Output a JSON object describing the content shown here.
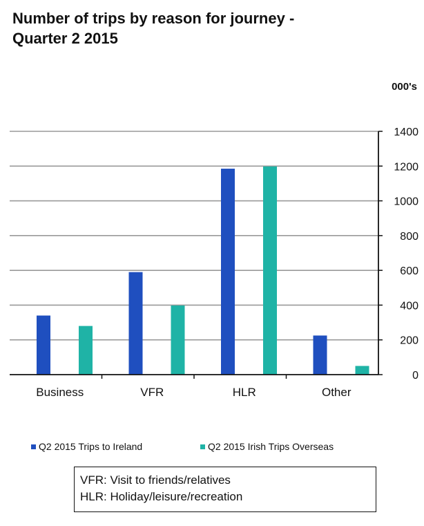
{
  "chart_data": {
    "type": "bar",
    "title": "Number of trips  by reason for journey -",
    "title_line2": "Quarter 2 2015",
    "units_label": "000's",
    "categories": [
      "Business",
      "VFR",
      "HLR",
      "Other"
    ],
    "series": [
      {
        "name": "Q2 2015 Trips to Ireland",
        "color": "#1f4fbf",
        "values": [
          340,
          590,
          1185,
          225
        ]
      },
      {
        "name": "Q2 2015 Irish Trips Overseas",
        "color": "#1fb3a6",
        "values": [
          280,
          398,
          1198,
          50
        ]
      }
    ],
    "ylim": [
      0,
      1400
    ],
    "yticks": [
      0,
      200,
      400,
      600,
      800,
      1000,
      1200,
      1400
    ],
    "y_axis_side": "right",
    "grid": true,
    "legend_position": "bottom"
  },
  "notes": [
    "VFR: Visit to friends/relatives",
    "HLR: Holiday/leisure/recreation"
  ]
}
